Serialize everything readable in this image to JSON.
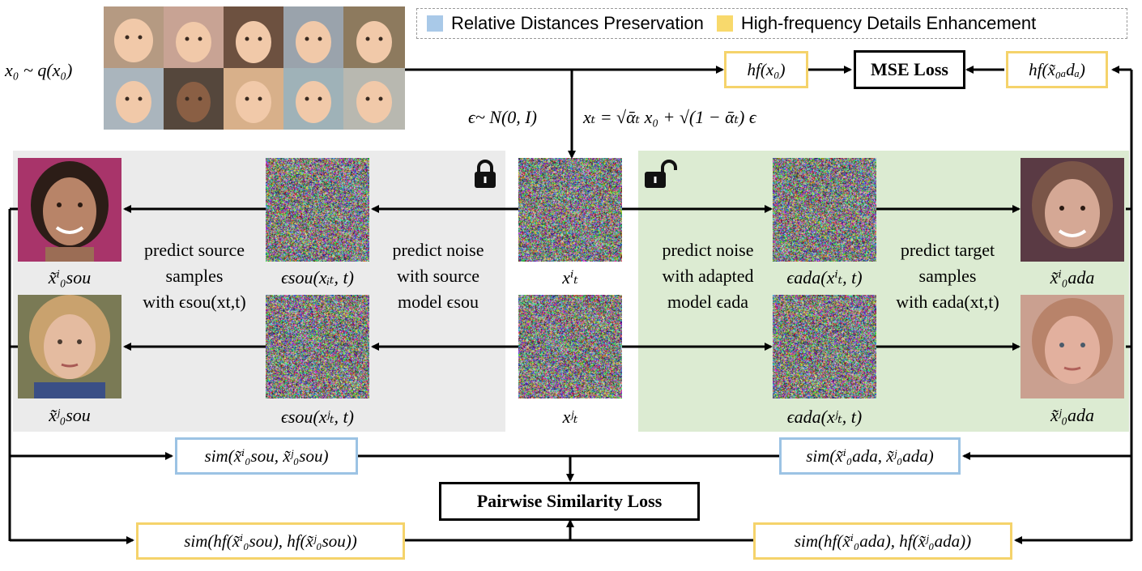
{
  "legend": {
    "items": [
      {
        "label": "Relative Distances Preservation",
        "color": "#a9c9e8"
      },
      {
        "label": "High-frequency Details Enhancement",
        "color": "#f8d96c"
      }
    ]
  },
  "colors": {
    "source_panel": "#ebebeb",
    "adapted_panel": "#dcebd2",
    "yellow_border": "#f5d36b",
    "blue_border": "#9cc3e4"
  },
  "top": {
    "x0_dist": "x₀ ~ q(x₀)",
    "noise_dist": "ϵ~ N(0, I)",
    "forward_eq": "xₜ = √ᾱₜ x₀ + √(1 − ᾱₜ) ϵ",
    "hf_x0": "hf(x₀)",
    "mse_loss": "MSE Loss",
    "hf_x0_ada": "hf(x̃₀ₐdₐ)"
  },
  "source_panel": {
    "lock_icon": "lock-closed-icon",
    "predict_samples": [
      "predict source",
      "samples",
      "with ϵsou(xt,t)"
    ],
    "predict_noise": [
      "predict noise",
      "with source",
      "model ϵsou"
    ],
    "eps_i": "ϵsou(xᵢₜ, t)",
    "eps_j": "ϵsou(xʲₜ, t)",
    "x0_i": "x̃ⁱ₀sou",
    "x0_j": "x̃ʲ₀sou"
  },
  "center": {
    "xt_i": "xⁱₜ",
    "xt_j": "xʲₜ"
  },
  "adapted_panel": {
    "lock_icon": "lock-open-icon",
    "predict_noise": [
      "predict noise",
      "with adapted",
      "model ϵada"
    ],
    "predict_samples": [
      "predict target",
      "samples",
      "with ϵada(xt,t)"
    ],
    "eps_i": "ϵada(xⁱₜ, t)",
    "eps_j": "ϵada(xʲₜ, t)",
    "x0_i": "x̃ⁱ₀ada",
    "x0_j": "x̃ʲ₀ada"
  },
  "bottom": {
    "sim_sou": "sim(x̃ⁱ₀sou, x̃ʲ₀sou)",
    "sim_ada": "sim(x̃ⁱ₀ada, x̃ʲ₀ada)",
    "pairwise_loss": "Pairwise Similarity Loss",
    "sim_hf_sou": "sim(hf(x̃ⁱ₀sou), hf(x̃ʲ₀sou))",
    "sim_hf_ada": "sim(hf(x̃ⁱ₀ada), hf(x̃ʲ₀ada))"
  }
}
